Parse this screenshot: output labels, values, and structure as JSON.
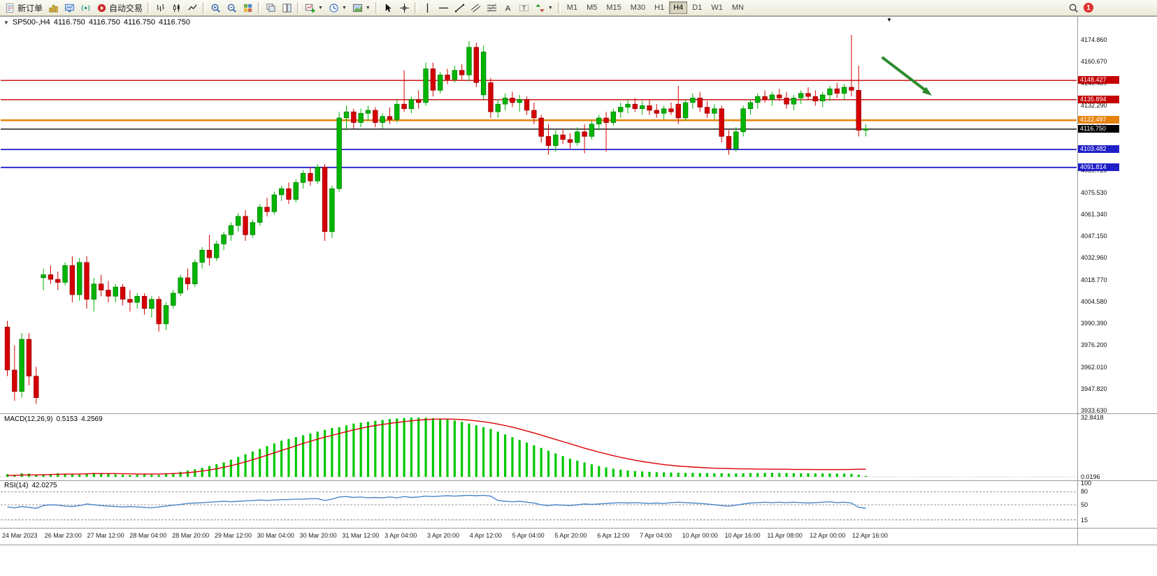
{
  "toolbar": {
    "new_order": "新订单",
    "autotrade": "自动交易",
    "timeframes": [
      "M1",
      "M5",
      "M15",
      "M30",
      "H1",
      "H4",
      "D1",
      "W1",
      "MN"
    ],
    "active_timeframe": "H4",
    "notification_count": "1"
  },
  "chart": {
    "symbol_period": "SP500-,H4",
    "open": "4116.750",
    "high": "4116.750",
    "low": "4116.750",
    "close": "4116.750"
  },
  "colors": {
    "bull": "#00b400",
    "bear": "#d40000",
    "bull_edge": "#007000",
    "bear_edge": "#8a0000",
    "macd_hist": "#00c800",
    "macd_signal": "#e00000",
    "rsi_line": "#4a86c8"
  },
  "chart_data": {
    "type": "candlestick",
    "symbol": "SP500-",
    "timeframe": "H4",
    "ylim": [
      3932.4,
      4182.6
    ],
    "price_ticks": [
      4174.86,
      4160.67,
      4146.48,
      4132.29,
      4118.1,
      4103.91,
      4089.72,
      4075.53,
      4061.34,
      4047.15,
      4032.96,
      4018.77,
      4004.58,
      3990.39,
      3976.2,
      3962.01,
      3947.82,
      3933.63
    ],
    "levels": [
      {
        "price": 4148.427,
        "color": "#c40000",
        "width": 1.4
      },
      {
        "price": 4135.894,
        "color": "#c40000",
        "width": 1.4
      },
      {
        "price": 4122.497,
        "color": "#e8820e",
        "width": 2.4
      },
      {
        "price": 4103.482,
        "color": "#1f1fc8",
        "width": 1.8
      },
      {
        "price": 4091.814,
        "color": "#1f1fc8",
        "width": 1.8
      }
    ],
    "current_price": {
      "price": 4116.75,
      "color": "#000000",
      "width": 1.4
    },
    "x_labels": [
      "24 Mar 2023",
      "26 Mar 23:00",
      "27 Mar 12:00",
      "28 Mar 04:00",
      "28 Mar 20:00",
      "29 Mar 12:00",
      "30 Mar 04:00",
      "30 Mar 20:00",
      "31 Mar 12:00",
      "3 Apr 04:00",
      "3 Apr 20:00",
      "4 Apr 12:00",
      "5 Apr 04:00",
      "5 Apr 20:00",
      "6 Apr 12:00",
      "7 Apr 04:00",
      "10 Apr 00:00",
      "10 Apr 16:00",
      "11 Apr 08:00",
      "12 Apr 00:00",
      "12 Apr 16:00"
    ],
    "candles": [
      [
        3988,
        3992,
        3956,
        3960
      ],
      [
        3960,
        3976,
        3940,
        3946
      ],
      [
        3946,
        3984,
        3942,
        3980
      ],
      [
        3980,
        3984,
        3950,
        3956
      ],
      [
        3956,
        3962,
        3938,
        3942
      ],
      [
        4020,
        4026,
        4012,
        4022
      ],
      [
        4022,
        4028,
        4016,
        4019
      ],
      [
        4019,
        4024,
        4012,
        4017
      ],
      [
        4017,
        4030,
        4015,
        4028
      ],
      [
        4028,
        4034,
        4004,
        4009
      ],
      [
        4009,
        4033,
        4005,
        4030
      ],
      [
        4030,
        4034,
        4000,
        4006
      ],
      [
        4006,
        4020,
        3998,
        4016
      ],
      [
        4016,
        4022,
        4008,
        4012
      ],
      [
        4012,
        4018,
        4004,
        4008
      ],
      [
        4008,
        4016,
        4004,
        4014
      ],
      [
        4014,
        4016,
        4002,
        4006
      ],
      [
        4006,
        4012,
        3998,
        4004
      ],
      [
        4004,
        4010,
        4000,
        4008
      ],
      [
        4008,
        4010,
        3996,
        4000
      ],
      [
        4000,
        4008,
        3994,
        4006
      ],
      [
        4006,
        4008,
        3985,
        3990
      ],
      [
        3990,
        4004,
        3986,
        4002
      ],
      [
        4002,
        4012,
        4000,
        4010
      ],
      [
        4010,
        4022,
        4008,
        4020
      ],
      [
        4020,
        4026,
        4012,
        4016
      ],
      [
        4016,
        4032,
        4014,
        4030
      ],
      [
        4030,
        4040,
        4026,
        4038
      ],
      [
        4038,
        4048,
        4028,
        4033
      ],
      [
        4033,
        4044,
        4031,
        4042
      ],
      [
        4042,
        4050,
        4038,
        4048
      ],
      [
        4048,
        4056,
        4044,
        4054
      ],
      [
        4054,
        4062,
        4050,
        4060
      ],
      [
        4060,
        4064,
        4044,
        4048
      ],
      [
        4048,
        4058,
        4046,
        4056
      ],
      [
        4056,
        4068,
        4054,
        4066
      ],
      [
        4066,
        4072,
        4060,
        4063
      ],
      [
        4063,
        4076,
        4061,
        4074
      ],
      [
        4074,
        4080,
        4070,
        4078
      ],
      [
        4078,
        4082,
        4068,
        4071
      ],
      [
        4071,
        4084,
        4069,
        4082
      ],
      [
        4082,
        4090,
        4078,
        4088
      ],
      [
        4088,
        4092,
        4080,
        4083
      ],
      [
        4083,
        4094,
        4081,
        4092
      ],
      [
        4092,
        4094,
        4044,
        4050
      ],
      [
        4050,
        4080,
        4046,
        4078
      ],
      [
        4078,
        4128,
        4076,
        4124
      ],
      [
        4124,
        4132,
        4116,
        4128
      ],
      [
        4128,
        4130,
        4117,
        4121
      ],
      [
        4121,
        4130,
        4118,
        4127
      ],
      [
        4127,
        4132,
        4122,
        4129
      ],
      [
        4129,
        4131,
        4118,
        4121
      ],
      [
        4121,
        4127,
        4117,
        4125
      ],
      [
        4125,
        4131,
        4120,
        4123
      ],
      [
        4123,
        4136,
        4121,
        4133
      ],
      [
        4133,
        4155,
        4128,
        4130
      ],
      [
        4130,
        4138,
        4127,
        4136
      ],
      [
        4136,
        4142,
        4130,
        4134
      ],
      [
        4134,
        4160,
        4132,
        4156
      ],
      [
        4156,
        4160,
        4138,
        4142
      ],
      [
        4142,
        4154,
        4140,
        4152
      ],
      [
        4152,
        4156,
        4146,
        4149
      ],
      [
        4149,
        4158,
        4147,
        4155
      ],
      [
        4155,
        4159,
        4149,
        4152
      ],
      [
        4152,
        4174,
        4148,
        4170
      ],
      [
        4170,
        4173,
        4144,
        4147
      ],
      [
        4139,
        4171,
        4136,
        4167
      ],
      [
        4147,
        4150,
        4124,
        4128
      ],
      [
        4128,
        4136,
        4124,
        4133
      ],
      [
        4133,
        4140,
        4129,
        4137
      ],
      [
        4137,
        4141,
        4131,
        4134
      ],
      [
        4134,
        4139,
        4128,
        4136
      ],
      [
        4136,
        4138,
        4126,
        4129
      ],
      [
        4129,
        4134,
        4120,
        4124
      ],
      [
        4124,
        4126,
        4108,
        4112
      ],
      [
        4112,
        4120,
        4100,
        4106
      ],
      [
        4106,
        4116,
        4102,
        4113
      ],
      [
        4113,
        4117,
        4107,
        4110
      ],
      [
        4110,
        4114,
        4104,
        4108
      ],
      [
        4108,
        4118,
        4106,
        4115
      ],
      [
        4115,
        4120,
        4101,
        4112
      ],
      [
        4112,
        4122,
        4110,
        4120
      ],
      [
        4120,
        4126,
        4116,
        4124
      ],
      [
        4124,
        4128,
        4102,
        4121
      ],
      [
        4121,
        4130,
        4119,
        4128
      ],
      [
        4128,
        4134,
        4124,
        4131
      ],
      [
        4131,
        4136,
        4127,
        4133
      ],
      [
        4133,
        4137,
        4128,
        4130
      ],
      [
        4130,
        4135,
        4126,
        4132
      ],
      [
        4132,
        4136,
        4126,
        4129
      ],
      [
        4129,
        4133,
        4124,
        4127
      ],
      [
        4127,
        4132,
        4123,
        4130
      ],
      [
        4130,
        4134,
        4126,
        4128
      ],
      [
        4133,
        4145,
        4120,
        4124
      ],
      [
        4124,
        4136,
        4122,
        4134
      ],
      [
        4134,
        4140,
        4130,
        4137
      ],
      [
        4137,
        4141,
        4128,
        4131
      ],
      [
        4131,
        4135,
        4124,
        4127
      ],
      [
        4127,
        4133,
        4123,
        4130
      ],
      [
        4130,
        4132,
        4108,
        4112
      ],
      [
        4112,
        4116,
        4100,
        4104
      ],
      [
        4104,
        4118,
        4102,
        4115
      ],
      [
        4115,
        4132,
        4112,
        4130
      ],
      [
        4130,
        4136,
        4126,
        4134
      ],
      [
        4134,
        4140,
        4130,
        4138
      ],
      [
        4138,
        4142,
        4134,
        4136
      ],
      [
        4136,
        4141,
        4132,
        4139
      ],
      [
        4139,
        4143,
        4135,
        4137
      ],
      [
        4137,
        4141,
        4130,
        4133
      ],
      [
        4133,
        4139,
        4129,
        4137
      ],
      [
        4137,
        4142,
        4133,
        4140
      ],
      [
        4140,
        4144,
        4136,
        4138
      ],
      [
        4138,
        4142,
        4132,
        4135
      ],
      [
        4135,
        4141,
        4131,
        4139
      ],
      [
        4139,
        4145,
        4135,
        4143
      ],
      [
        4143,
        4147,
        4137,
        4140
      ],
      [
        4140,
        4146,
        4136,
        4144
      ],
      [
        4144,
        4178,
        4138,
        4142
      ],
      [
        4142,
        4158,
        4112,
        4116
      ],
      [
        4116,
        4120,
        4112,
        4117
      ]
    ],
    "macd": {
      "label": "MACD(12,26,9)",
      "value_main": "0.5153",
      "value_signal": "4.2569",
      "axis_max": "32.8418",
      "axis_min": "0.0196",
      "hist": [
        1.5,
        1.0,
        2.0,
        1.8,
        1.2,
        1.0,
        1.5,
        2.0,
        1.8,
        1.4,
        1.2,
        1.8,
        2.2,
        2.0,
        1.6,
        1.4,
        1.2,
        1.0,
        1.2,
        1.5,
        1.2,
        1.0,
        1.5,
        2.0,
        2.8,
        3.5,
        4.2,
        5.0,
        6.0,
        7.0,
        8.0,
        9.5,
        11.0,
        12.5,
        14.0,
        15.5,
        17.0,
        18.5,
        20.0,
        21.0,
        22.0,
        23.0,
        24.0,
        25.0,
        26.0,
        27.0,
        27.5,
        28.5,
        29.5,
        30.0,
        30.5,
        31.0,
        31.5,
        32.0,
        32.3,
        32.6,
        32.8,
        32.8,
        32.7,
        32.5,
        32.2,
        31.8,
        31.2,
        30.5,
        29.5,
        28.5,
        27.5,
        26.5,
        25.0,
        23.5,
        22.0,
        20.5,
        19.0,
        17.5,
        16.0,
        14.5,
        13.0,
        11.5,
        10.0,
        9.0,
        8.0,
        7.0,
        6.0,
        5.2,
        4.5,
        4.0,
        3.5,
        3.2,
        3.0,
        2.8,
        2.6,
        2.5,
        2.4,
        2.3,
        2.2,
        2.2,
        2.1,
        2.1,
        2.0,
        2.0,
        1.9,
        1.9,
        2.0,
        2.1,
        2.1,
        2.2,
        2.2,
        2.1,
        2.1,
        2.0,
        2.0,
        2.0,
        1.9,
        1.9,
        1.9,
        1.8,
        1.8,
        1.7,
        1.2,
        0.5
      ],
      "signal": [
        0.8,
        0.9,
        1.0,
        1.1,
        1.1,
        1.2,
        1.3,
        1.4,
        1.5,
        1.5,
        1.6,
        1.7,
        1.8,
        1.8,
        1.8,
        1.8,
        1.7,
        1.7,
        1.6,
        1.6,
        1.6,
        1.6,
        1.7,
        1.8,
        2.0,
        2.3,
        2.7,
        3.2,
        3.8,
        4.5,
        5.3,
        6.2,
        7.2,
        8.3,
        9.5,
        10.7,
        12.0,
        13.3,
        14.6,
        15.9,
        17.2,
        18.5,
        19.7,
        20.9,
        22.0,
        23.0,
        24.0,
        25.0,
        26.0,
        26.9,
        27.7,
        28.4,
        29.0,
        29.6,
        30.1,
        30.6,
        31.0,
        31.4,
        31.7,
        31.9,
        32.0,
        32.0,
        31.9,
        31.7,
        31.4,
        31.0,
        30.5,
        29.9,
        29.2,
        28.4,
        27.5,
        26.5,
        25.4,
        24.3,
        23.1,
        21.9,
        20.7,
        19.5,
        18.3,
        17.1,
        15.9,
        14.8,
        13.7,
        12.7,
        11.7,
        10.8,
        10.0,
        9.2,
        8.5,
        7.9,
        7.3,
        6.8,
        6.4,
        6.0,
        5.7,
        5.4,
        5.2,
        5.0,
        4.8,
        4.7,
        4.6,
        4.5,
        4.4,
        4.4,
        4.3,
        4.3,
        4.2,
        4.2,
        4.2,
        4.1,
        4.1,
        4.1,
        4.0,
        4.0,
        4.0,
        4.0,
        4.0,
        4.1,
        4.2,
        4.26
      ]
    },
    "rsi": {
      "label": "RSI(14)",
      "value": "42.0275",
      "axis_labels": [
        {
          "label": "100",
          "value": 100
        },
        {
          "label": "80",
          "value": 80
        },
        {
          "label": "50",
          "value": 50
        },
        {
          "label": "15",
          "value": 15
        }
      ],
      "dashed_levels": [
        80,
        50,
        15
      ],
      "values": [
        45,
        43,
        46,
        44,
        42,
        48,
        50,
        49,
        47,
        46,
        48,
        52,
        50,
        48,
        47,
        46,
        45,
        46,
        45,
        44,
        43,
        45,
        47,
        49,
        51,
        53,
        54,
        55,
        56,
        57,
        58,
        57,
        58,
        59,
        60,
        61,
        60,
        61,
        62,
        62,
        63,
        63,
        64,
        64,
        60,
        63,
        68,
        69,
        67,
        68,
        66,
        67,
        66,
        68,
        66,
        69,
        67,
        68,
        70,
        69,
        70,
        71,
        70,
        71,
        72,
        71,
        72,
        70,
        60,
        58,
        57,
        58,
        56,
        54,
        50,
        48,
        50,
        49,
        48,
        50,
        52,
        51,
        52,
        53,
        54,
        55,
        54,
        55,
        54,
        53,
        54,
        53,
        55,
        56,
        55,
        54,
        53,
        52,
        50,
        48,
        47,
        49,
        52,
        54,
        55,
        56,
        55,
        56,
        55,
        56,
        55,
        54,
        55,
        56,
        57,
        55,
        56,
        54,
        44,
        42
      ]
    },
    "annotation_arrow": {
      "color": "#2d8a2d"
    }
  }
}
